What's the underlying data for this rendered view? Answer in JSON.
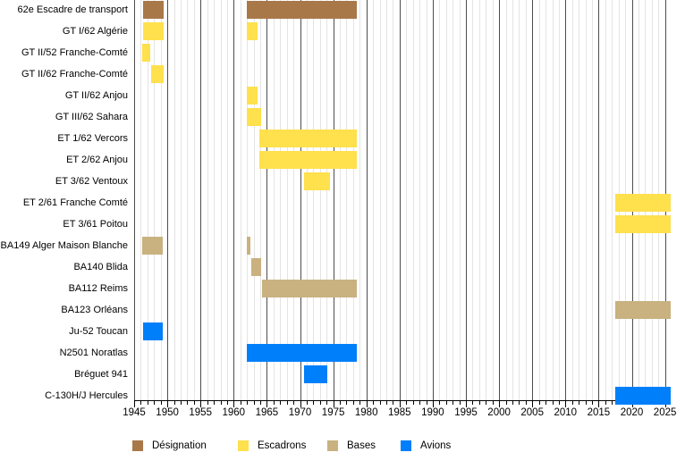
{
  "chart_data": {
    "type": "gantt",
    "description": "Timeline of the 62e Escadre de transport: designations, squadrons, bases and aircraft from 1945 to 2025",
    "x_axis": {
      "min": 1945,
      "max": 2025,
      "major_tick_interval": 5,
      "minor_tick_interval": 1,
      "tick_labels": [
        "1945",
        "1950",
        "1955",
        "1960",
        "1965",
        "1970",
        "1975",
        "1980",
        "1985",
        "1990",
        "1995",
        "2000",
        "2005",
        "2010",
        "2015",
        "2020",
        "2025"
      ]
    },
    "grid": {
      "minor_color": "#e4e4e4",
      "major_color": "#4d4d4d",
      "axis_color": "#000000"
    },
    "legend": [
      {
        "key": "designation",
        "label": "Désignation",
        "color": "#A97849"
      },
      {
        "key": "escadrons",
        "label": "Escadrons",
        "color": "#FFE04D"
      },
      {
        "key": "bases",
        "label": "Bases",
        "color": "#C9B180"
      },
      {
        "key": "avions",
        "label": "Avions",
        "color": "#007FFA"
      }
    ],
    "rows": [
      {
        "label": "62e Escadre de transport",
        "category": "designation",
        "bars": [
          [
            1946.3,
            1949.5
          ],
          [
            1962.0,
            1978.6
          ]
        ]
      },
      {
        "label": "GT I/62 Algérie",
        "category": "escadrons",
        "bars": [
          [
            1946.3,
            1949.5
          ],
          [
            1962.0,
            1963.6
          ]
        ]
      },
      {
        "label": "GT II/52 Franche-Comté",
        "category": "escadrons",
        "bars": [
          [
            1946.2,
            1947.5
          ]
        ]
      },
      {
        "label": "GT II/62 Franche-Comté",
        "category": "escadrons",
        "bars": [
          [
            1947.5,
            1949.5
          ]
        ]
      },
      {
        "label": "GT II/62 Anjou",
        "category": "escadrons",
        "bars": [
          [
            1962.0,
            1963.6
          ]
        ]
      },
      {
        "label": "GT III/62 Sahara",
        "category": "escadrons",
        "bars": [
          [
            1962.0,
            1964.1
          ]
        ]
      },
      {
        "label": "ET 1/62 Vercors",
        "category": "escadrons",
        "bars": [
          [
            1963.8,
            1978.6
          ]
        ]
      },
      {
        "label": "ET 2/62 Anjou",
        "category": "escadrons",
        "bars": [
          [
            1963.8,
            1978.6
          ]
        ]
      },
      {
        "label": "ET 3/62 Ventoux",
        "category": "escadrons",
        "bars": [
          [
            1970.6,
            1974.5
          ]
        ]
      },
      {
        "label": "ET 2/61 Franche Comté",
        "category": "escadrons",
        "bars": [
          [
            2017.5,
            2025.8
          ]
        ]
      },
      {
        "label": "ET 3/61 Poitou",
        "category": "escadrons",
        "bars": [
          [
            2017.5,
            2025.8
          ]
        ]
      },
      {
        "label": "BA149 Alger Maison Blanche",
        "category": "bases",
        "bars": [
          [
            1946.2,
            1949.3
          ],
          [
            1962.0,
            1962.5
          ]
        ]
      },
      {
        "label": "BA140 Blida",
        "category": "bases",
        "bars": [
          [
            1962.6,
            1964.2
          ]
        ]
      },
      {
        "label": "BA112 Reims",
        "category": "bases",
        "bars": [
          [
            1964.3,
            1978.6
          ]
        ]
      },
      {
        "label": "BA123 Orléans",
        "category": "bases",
        "bars": [
          [
            2017.5,
            2025.8
          ]
        ]
      },
      {
        "label": "Ju-52 Toucan",
        "category": "avions",
        "bars": [
          [
            1946.3,
            1949.3
          ]
        ]
      },
      {
        "label": "N2501 Noratlas",
        "category": "avions",
        "bars": [
          [
            1962.0,
            1978.6
          ]
        ]
      },
      {
        "label": "Bréguet 941",
        "category": "avions",
        "bars": [
          [
            1970.6,
            1974.1
          ]
        ]
      },
      {
        "label": "C-130H/J Hercules",
        "category": "avions",
        "bars": [
          [
            2017.5,
            2025.8
          ]
        ]
      }
    ]
  }
}
